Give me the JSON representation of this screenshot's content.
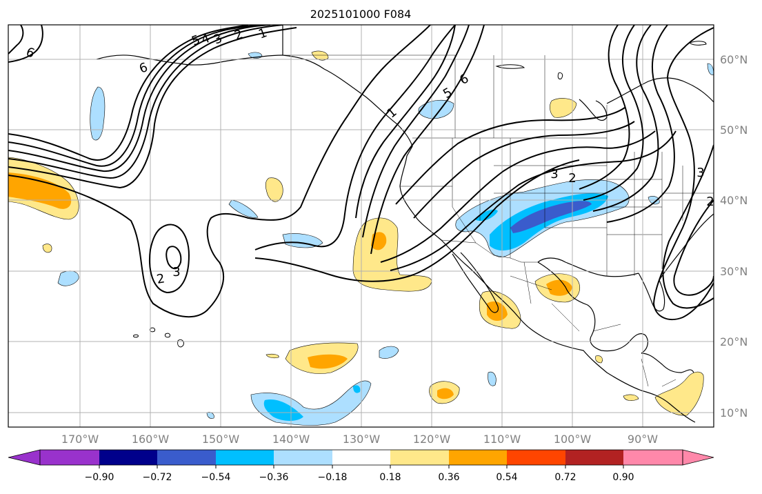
{
  "title": "2025101000 F084",
  "lon_labels": [
    "170°W",
    "160°W",
    "150°W",
    "140°W",
    "130°W",
    "120°W",
    "110°W",
    "100°W",
    "90°W"
  ],
  "lat_labels": [
    "60°N",
    "50°N",
    "40°N",
    "30°N",
    "20°N",
    "10°N"
  ],
  "colorbar": {
    "tick_labels": [
      "−0.90",
      "−0.72",
      "−0.54",
      "−0.36",
      "−0.18",
      "0.18",
      "0.36",
      "0.54",
      "0.72",
      "0.90"
    ],
    "bin_colors": [
      "#9932CC",
      "#00008B",
      "#3A5CCC",
      "#00BFFF",
      "#ADDFFF",
      "#FFFFFF",
      "#FFE88A",
      "#FFA500",
      "#FF4500",
      "#B22222",
      "#FF88AA"
    ]
  },
  "contour_labels": [
    "1",
    "2",
    "3",
    "4",
    "5",
    "6",
    "2",
    "3",
    "6",
    "5",
    "1",
    "6",
    "2",
    "3",
    "2",
    "3"
  ],
  "colors": {
    "neg_light": "#ADDFFF",
    "neg_mid": "#00BFFF",
    "neg_dark": "#3A5CCC",
    "pos_light": "#FFE88A",
    "pos_mid": "#FFA500",
    "contour": "#000000",
    "grid": "#B0B0B0",
    "label_gray": "#808080"
  }
}
